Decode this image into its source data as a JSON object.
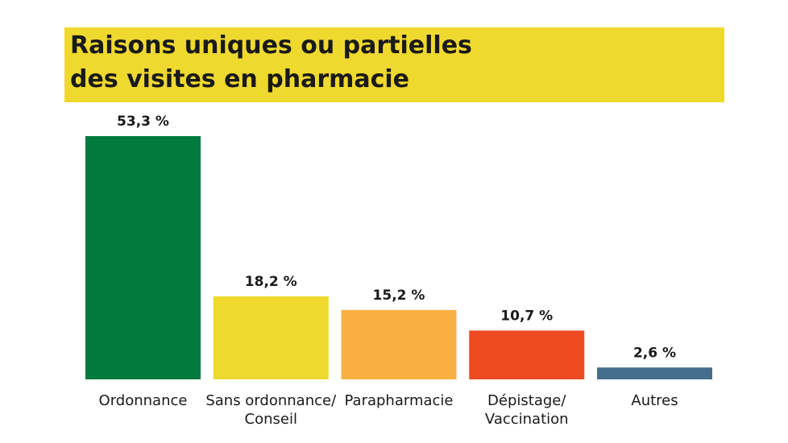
{
  "header": {
    "title_line1": "Raisons uniques ou partielles",
    "title_line2": "des visites en pharmacie",
    "band_color": "#efd92f"
  },
  "chart_data": {
    "type": "bar",
    "title": "Raisons uniques ou partielles des visites en pharmacie",
    "categories": [
      [
        "Ordonnance"
      ],
      [
        "Sans ordonnance/",
        "Conseil"
      ],
      [
        "Parapharmacie"
      ],
      [
        "Dépistage/",
        "Vaccination"
      ],
      [
        "Autres"
      ]
    ],
    "values": [
      53.3,
      18.2,
      15.2,
      10.7,
      2.6
    ],
    "value_labels": [
      "53,3 %",
      "18,2 %",
      "15,2 %",
      "10,7 %",
      "2,6 %"
    ],
    "colors": [
      "#007a3d",
      "#efd92f",
      "#f9b043",
      "#ef4b23",
      "#456d8c"
    ],
    "ylim": [
      0,
      53.3
    ],
    "xlabel": "",
    "ylabel": "",
    "grid": false,
    "legend": "none"
  }
}
